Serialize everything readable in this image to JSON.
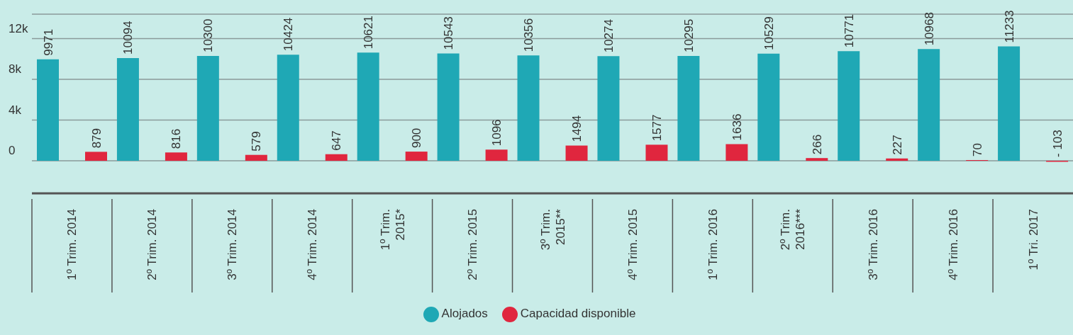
{
  "chart_data": {
    "type": "bar",
    "categories": [
      "1º Trim. 2014",
      "2º Trim. 2014",
      "3º Trim. 2014",
      "4º Trim. 2014",
      "1º Trim. 2015*",
      "2º Trim. 2015",
      "3º Trim. 2015**",
      "4º Trim. 2015",
      "1º Trim. 2016",
      "2º Trim. 2016***",
      "3º Trim. 2016",
      "4º Trim. 2016",
      "1º Tri. 2017"
    ],
    "series": [
      {
        "name": "Alojados",
        "color": "#1fa8b5",
        "values": [
          9971,
          10094,
          10300,
          10424,
          10621,
          10543,
          10356,
          10274,
          10295,
          10529,
          10771,
          10968,
          11233
        ],
        "value_labels": [
          "9971",
          "10094",
          "10300",
          "10424",
          "10621",
          "10543",
          "10356",
          "10274",
          "10295",
          "10529",
          "10771",
          "10968",
          "11233"
        ]
      },
      {
        "name": "Capacidad disponible",
        "color": "#e0263e",
        "values": [
          879,
          816,
          579,
          647,
          900,
          1096,
          1494,
          1577,
          1636,
          266,
          227,
          70,
          -103
        ],
        "value_labels": [
          "879",
          "816",
          "579",
          "647",
          "900",
          "1096",
          "1494",
          "1577",
          "1636",
          "266",
          "227",
          "70",
          "- 103"
        ]
      }
    ],
    "ylim": [
      -3200,
      14400
    ],
    "yticks": [
      0,
      {
        "value": 4000,
        "label": "4k"
      },
      {
        "value": 8000,
        "label": "8k"
      },
      {
        "value": 12000,
        "label": "12k"
      }
    ],
    "grid": "y",
    "legend": "bottom"
  }
}
